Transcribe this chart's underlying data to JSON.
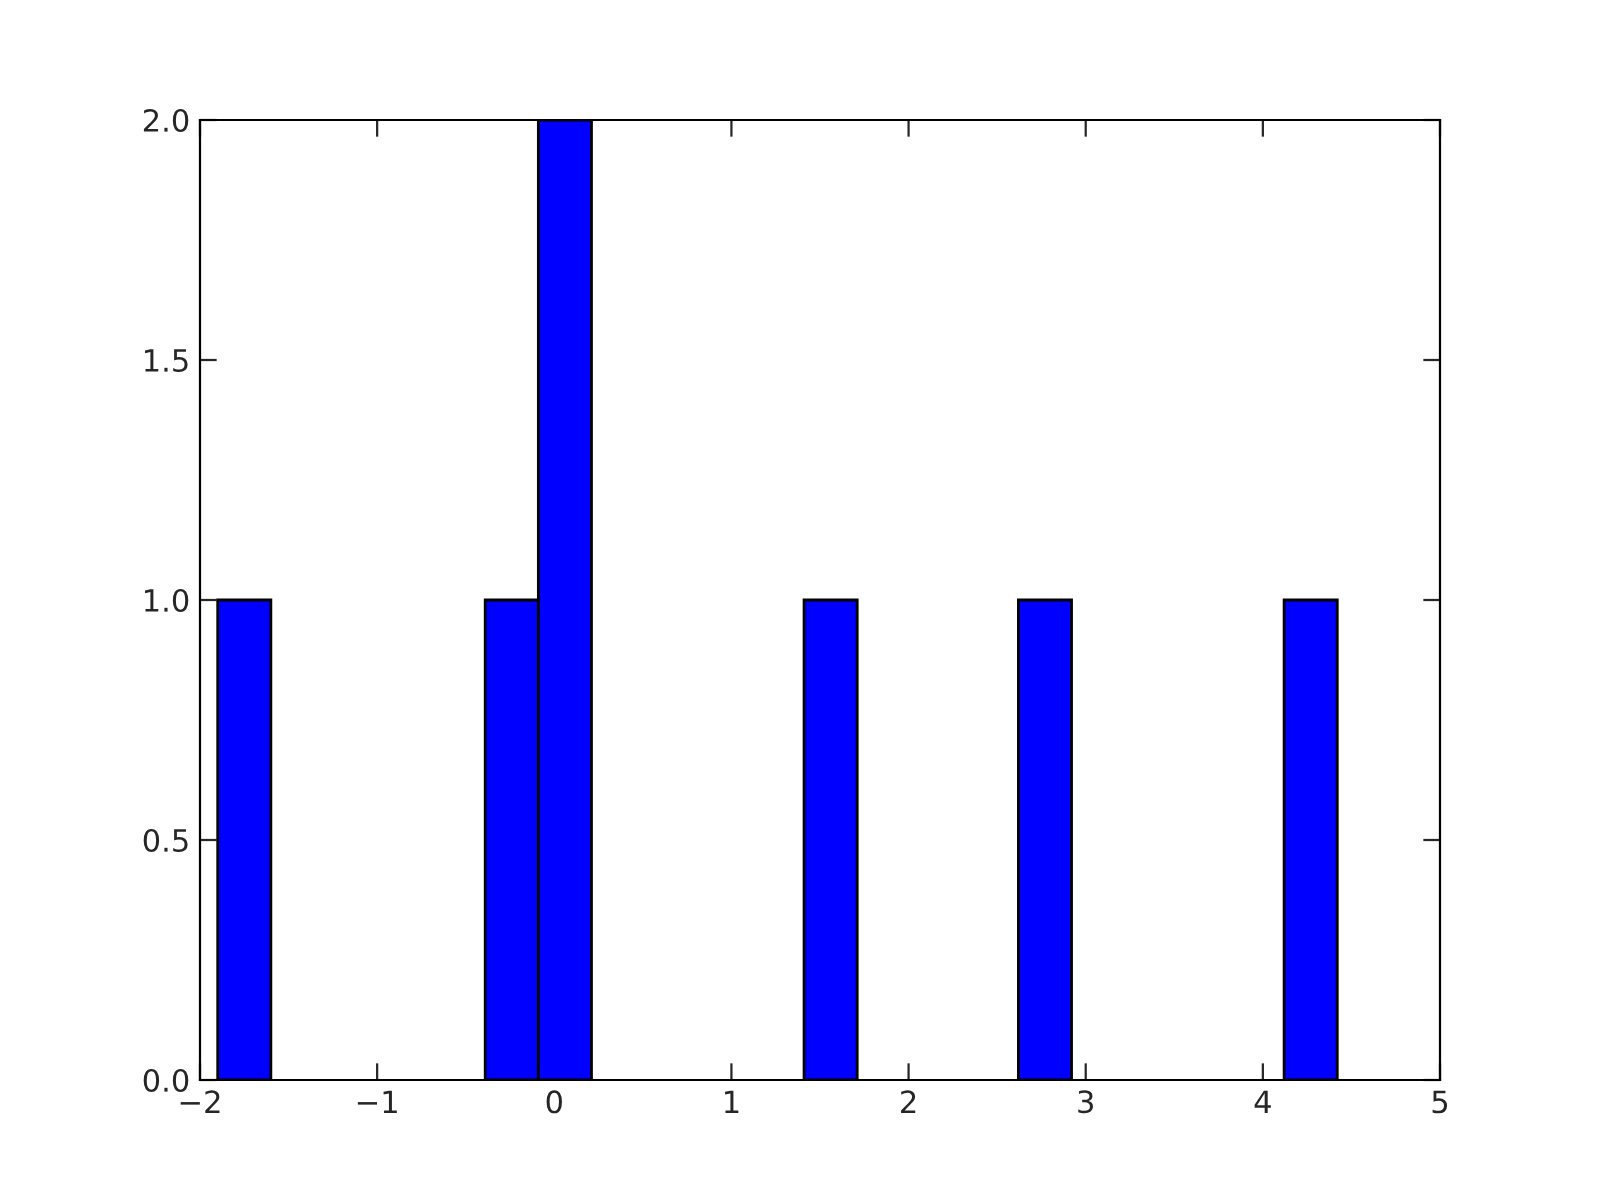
{
  "chart_data": {
    "type": "histogram",
    "bins": [
      -1.9,
      -1.6,
      -0.39,
      -0.09,
      0.21,
      1.41,
      1.71,
      2.62,
      2.92,
      4.12,
      4.42
    ],
    "values": [
      1,
      0,
      1,
      2,
      0,
      1,
      0,
      1,
      0,
      1
    ],
    "color": "#0000ff",
    "xlim": [
      -2,
      5
    ],
    "xticks": [
      {
        "value": -2,
        "label": "−2"
      },
      {
        "value": -1,
        "label": "−1"
      },
      0,
      1,
      2,
      3,
      4,
      5
    ],
    "ylim": [
      0,
      2
    ],
    "yticks": [
      {
        "value": 0,
        "label": "0.0"
      },
      {
        "value": 0.5,
        "label": "0.5"
      },
      {
        "value": 1,
        "label": "1.0"
      },
      {
        "value": 1.5,
        "label": "1.5"
      },
      {
        "value": 2,
        "label": "2.0"
      }
    ],
    "grid": false,
    "legend": false
  }
}
